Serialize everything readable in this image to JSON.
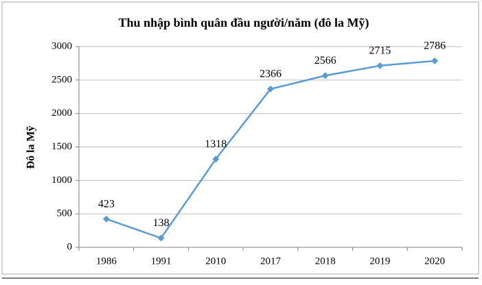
{
  "chart_data": {
    "type": "line",
    "title": "Thu nhập bình quân đầu người/năm (đô la Mỹ)",
    "y_label": "Đô la Mỹ",
    "categories": [
      "1986",
      "1991",
      "2010",
      "2017",
      "2018",
      "2019",
      "2020"
    ],
    "values": [
      423,
      138,
      1318,
      2366,
      2566,
      2715,
      2786
    ],
    "color": "#5b9bd5",
    "ylim": [
      0,
      3000
    ],
    "yticks": [
      0,
      500,
      1000,
      1500,
      2000,
      2500,
      3000
    ],
    "grid": true
  }
}
